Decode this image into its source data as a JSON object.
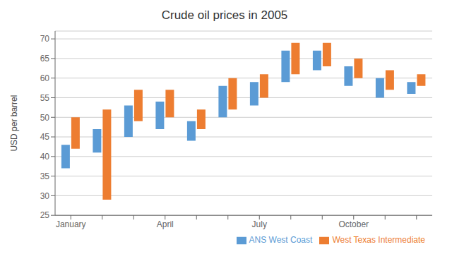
{
  "chart_data": {
    "type": "bar",
    "title": "Crude oil prices in 2005",
    "ylabel": "USD per barrel",
    "categories": [
      "January",
      null,
      null,
      "April",
      null,
      null,
      "July",
      null,
      null,
      "October",
      null,
      null
    ],
    "series": [
      {
        "name": "ANS West Coast",
        "color": "#5B9BD5",
        "values": [
          [
            37,
            43
          ],
          [
            41,
            47
          ],
          [
            45,
            53
          ],
          [
            47,
            54
          ],
          [
            44,
            49
          ],
          [
            50,
            58
          ],
          [
            53,
            59
          ],
          [
            59,
            67
          ],
          [
            62,
            67
          ],
          [
            58,
            63
          ],
          [
            55,
            60
          ],
          [
            56,
            59
          ]
        ]
      },
      {
        "name": "West Texas Intermediate",
        "color": "#ED7D31",
        "values": [
          [
            42,
            50
          ],
          [
            29,
            52
          ],
          [
            49,
            57
          ],
          [
            50,
            57
          ],
          [
            47,
            52
          ],
          [
            52,
            60
          ],
          [
            55,
            61
          ],
          [
            61,
            69
          ],
          [
            63,
            69
          ],
          [
            60,
            65
          ],
          [
            57,
            62
          ],
          [
            58,
            61
          ]
        ]
      }
    ],
    "ylim": [
      25,
      72
    ],
    "yticks": [
      25,
      30,
      35,
      40,
      45,
      50,
      55,
      60,
      65,
      70
    ],
    "grid": true,
    "legend": "lower right"
  }
}
